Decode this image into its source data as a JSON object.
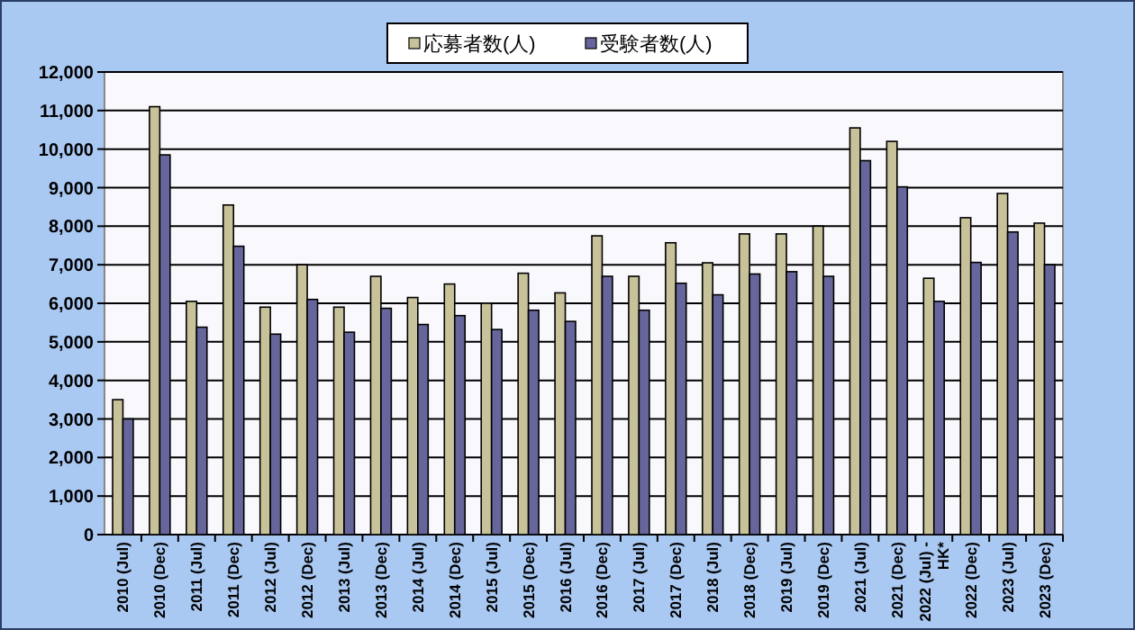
{
  "chart_data": {
    "type": "bar",
    "categories": [
      "2010 (Jul)",
      "2010 (Dec)",
      "2011 (Jul)",
      "2011 (Dec)",
      "2012 (Jul)",
      "2012 (Dec)",
      "2013 (Jul)",
      "2013 (Dec)",
      "2014 (Jul)",
      "2014 (Dec)",
      "2015 (Jul)",
      "2015 (Dec)",
      "2016 (Jul)",
      "2016 (Dec)",
      "2017 (Jul)",
      "2017 (Dec)",
      "2018 (Jul)",
      "2018 (Dec)",
      "2019 (Jul)",
      "2019 (Dec)",
      "2021 (Jul)",
      "2021 (Dec)",
      "2022 (Jul) - HK*",
      "2022 (Dec)",
      "2023 (Jul)",
      "2023 (Dec)"
    ],
    "series": [
      {
        "name": "応募者数(人)",
        "color": "#c8c29a",
        "values": [
          3500,
          11100,
          6050,
          8550,
          5900,
          7000,
          5900,
          6700,
          6150,
          6500,
          6000,
          6780,
          6270,
          7750,
          6700,
          7570,
          7050,
          7800,
          7800,
          8000,
          10550,
          10200,
          6650,
          8220,
          8850,
          8080
        ]
      },
      {
        "name": "受験者数(人)",
        "color": "#66669c",
        "values": [
          3000,
          9850,
          5380,
          7480,
          5200,
          6100,
          5250,
          5870,
          5450,
          5680,
          5320,
          5820,
          5530,
          6700,
          5820,
          6520,
          6220,
          6760,
          6820,
          6700,
          9700,
          9020,
          6050,
          7060,
          7850,
          7000
        ]
      }
    ],
    "ylim": [
      0,
      12000
    ],
    "yticks": [
      {
        "value": 0,
        "label": "0"
      },
      {
        "value": 1000,
        "label": "1,000"
      },
      {
        "value": 2000,
        "label": "2,000"
      },
      {
        "value": 3000,
        "label": "3,000"
      },
      {
        "value": 4000,
        "label": "4,000"
      },
      {
        "value": 5000,
        "label": "5,000"
      },
      {
        "value": 6000,
        "label": "6,000"
      },
      {
        "value": 7000,
        "label": "7,000"
      },
      {
        "value": 8000,
        "label": "8,000"
      },
      {
        "value": 9000,
        "label": "9,000"
      },
      {
        "value": 10000,
        "label": "10,000"
      },
      {
        "value": 11000,
        "label": "11,000"
      },
      {
        "value": 12000,
        "label": "12,000"
      }
    ],
    "grid": "y",
    "legend": "top"
  }
}
